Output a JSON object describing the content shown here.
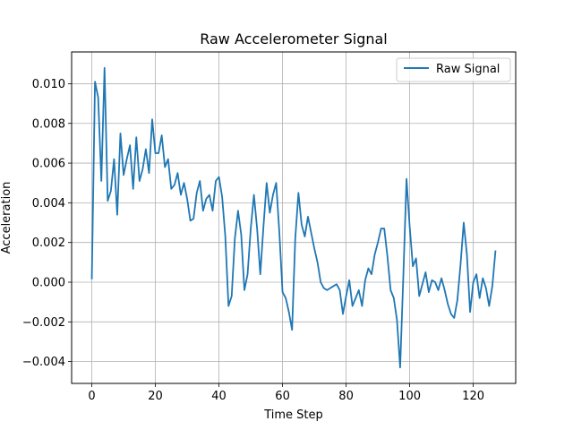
{
  "chart_data": {
    "type": "line",
    "title": "Raw Accelerometer Signal",
    "xlabel": "Time Step",
    "ylabel": "Acceleration",
    "xlim": [
      -6.35,
      133.35
    ],
    "ylim": [
      -0.0051,
      0.0116
    ],
    "xticks": [
      0,
      20,
      40,
      60,
      80,
      100,
      120
    ],
    "xtick_labels": [
      "0",
      "20",
      "40",
      "60",
      "80",
      "100",
      "120"
    ],
    "yticks": [
      -0.004,
      -0.002,
      0.0,
      0.002,
      0.004,
      0.006,
      0.008,
      0.01
    ],
    "ytick_labels": [
      "−0.004",
      "−0.002",
      "0.000",
      "0.002",
      "0.004",
      "0.006",
      "0.008",
      "0.010"
    ],
    "grid": true,
    "legend_position": "top-right",
    "colors": {
      "series": "#1f77b4",
      "grid": "#b0b0b0"
    },
    "series": [
      {
        "name": "Raw Signal",
        "x": [
          0,
          1,
          2,
          3,
          4,
          5,
          6,
          7,
          8,
          9,
          10,
          11,
          12,
          13,
          14,
          15,
          16,
          17,
          18,
          19,
          20,
          21,
          22,
          23,
          24,
          25,
          26,
          27,
          28,
          29,
          30,
          31,
          32,
          33,
          34,
          35,
          36,
          37,
          38,
          39,
          40,
          41,
          42,
          43,
          44,
          45,
          46,
          47,
          48,
          49,
          50,
          51,
          52,
          53,
          54,
          55,
          56,
          57,
          58,
          59,
          60,
          61,
          62,
          63,
          64,
          65,
          66,
          67,
          68,
          69,
          70,
          71,
          72,
          73,
          74,
          75,
          76,
          77,
          78,
          79,
          80,
          81,
          82,
          83,
          84,
          85,
          86,
          87,
          88,
          89,
          90,
          91,
          92,
          93,
          94,
          95,
          96,
          97,
          98,
          99,
          100,
          101,
          102,
          103,
          104,
          105,
          106,
          107,
          108,
          109,
          110,
          111,
          112,
          113,
          114,
          115,
          116,
          117,
          118,
          119,
          120,
          121,
          122,
          123,
          124,
          125,
          126,
          127
        ],
        "y": [
          0.00015,
          0.0101,
          0.0093,
          0.0051,
          0.0108,
          0.0041,
          0.0046,
          0.0062,
          0.0034,
          0.0075,
          0.0054,
          0.0062,
          0.0069,
          0.0047,
          0.0073,
          0.0051,
          0.0057,
          0.0067,
          0.0055,
          0.0082,
          0.0065,
          0.0065,
          0.0074,
          0.0058,
          0.0062,
          0.0047,
          0.0049,
          0.0055,
          0.0044,
          0.005,
          0.0042,
          0.0031,
          0.0032,
          0.0045,
          0.0051,
          0.0036,
          0.0042,
          0.0044,
          0.0036,
          0.0051,
          0.0053,
          0.0043,
          0.0023,
          -0.0012,
          -0.0007,
          0.0022,
          0.0036,
          0.0024,
          -0.0004,
          0.0004,
          0.0027,
          0.0044,
          0.0027,
          0.0004,
          0.0028,
          0.005,
          0.0035,
          0.0044,
          0.005,
          0.0025,
          -0.0005,
          -0.0008,
          -0.0015,
          -0.0024,
          0.0022,
          0.0045,
          0.0029,
          0.0023,
          0.0033,
          0.0025,
          0.0017,
          0.001,
          0.0,
          -0.0003,
          -0.0004,
          -0.0003,
          -0.0002,
          -0.0001,
          -0.0004,
          -0.0016,
          -0.0007,
          0.0001,
          -0.0012,
          -0.0008,
          -0.0004,
          -0.0012,
          0.0001,
          0.0007,
          0.0004,
          0.0014,
          0.002,
          0.0027,
          0.0027,
          0.0013,
          -0.0004,
          -0.0008,
          -0.0019,
          -0.0043,
          0.0003,
          0.0052,
          0.0028,
          0.0008,
          0.0012,
          -0.0007,
          -0.0001,
          0.0005,
          -0.0005,
          0.0001,
          0.0,
          -0.0004,
          0.0002,
          -0.0004,
          -0.0011,
          -0.0016,
          -0.0018,
          -0.0009,
          0.0009,
          0.003,
          0.0014,
          -0.0015,
          0.0,
          0.0004,
          -0.0008,
          0.0002,
          -0.0003,
          -0.0012,
          -0.0002,
          0.0016
        ]
      }
    ]
  }
}
